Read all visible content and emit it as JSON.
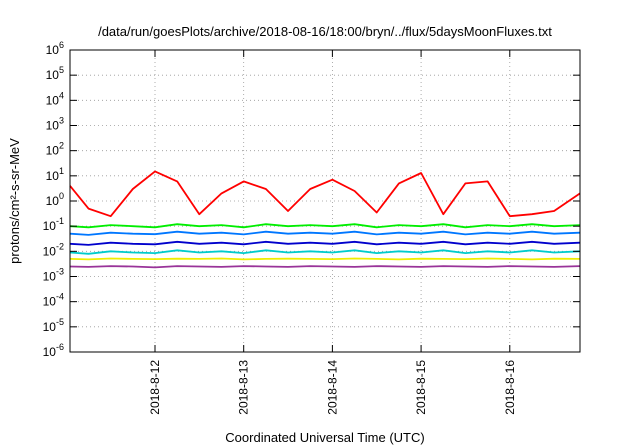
{
  "chart_data": {
    "type": "line",
    "title": "/data/run/goesPlots/archive/2018-08-16/18:00/bryn/../flux/5daysMoonFluxes.txt",
    "xlabel": "Coordinated Universal Time (UTC)",
    "ylabel": "protons/cm²-s-sr-MeV",
    "y_scale": "log",
    "ylim": [
      1e-06,
      1000000.0
    ],
    "xlim": [
      "2018-08-11 01:00",
      "2018-08-16 19:00"
    ],
    "x_ticks": [
      "2018-8-12",
      "2018-8-13",
      "2018-8-14",
      "2018-8-15",
      "2018-8-16"
    ],
    "grid": true,
    "legend": "none",
    "x": [
      "2018-08-11 01:00",
      "2018-08-11 06:00",
      "2018-08-11 12:00",
      "2018-08-11 18:00",
      "2018-08-12 00:00",
      "2018-08-12 06:00",
      "2018-08-12 12:00",
      "2018-08-12 18:00",
      "2018-08-13 00:00",
      "2018-08-13 06:00",
      "2018-08-13 12:00",
      "2018-08-13 18:00",
      "2018-08-14 00:00",
      "2018-08-14 06:00",
      "2018-08-14 12:00",
      "2018-08-14 18:00",
      "2018-08-15 00:00",
      "2018-08-15 06:00",
      "2018-08-15 12:00",
      "2018-08-15 18:00",
      "2018-08-16 00:00",
      "2018-08-16 06:00",
      "2018-08-16 12:00",
      "2018-08-16 19:00"
    ],
    "series": [
      {
        "color": "#ff0000",
        "values": [
          4,
          0.5,
          0.25,
          3,
          15,
          6,
          0.3,
          2,
          6,
          3,
          0.4,
          3,
          7,
          2.5,
          0.35,
          5,
          13,
          0.3,
          5,
          6,
          0.25,
          0.3,
          0.4,
          2
        ]
      },
      {
        "color": "#00ee00",
        "values": [
          0.1,
          0.09,
          0.11,
          0.1,
          0.09,
          0.12,
          0.1,
          0.11,
          0.09,
          0.12,
          0.1,
          0.11,
          0.1,
          0.12,
          0.09,
          0.11,
          0.1,
          0.12,
          0.09,
          0.11,
          0.1,
          0.12,
          0.1,
          0.11
        ]
      },
      {
        "color": "#0077ff",
        "values": [
          0.05,
          0.045,
          0.055,
          0.05,
          0.048,
          0.06,
          0.05,
          0.055,
          0.047,
          0.06,
          0.05,
          0.055,
          0.05,
          0.06,
          0.047,
          0.055,
          0.05,
          0.06,
          0.047,
          0.055,
          0.05,
          0.06,
          0.05,
          0.055
        ]
      },
      {
        "color": "#0000cc",
        "values": [
          0.02,
          0.018,
          0.022,
          0.02,
          0.019,
          0.024,
          0.02,
          0.022,
          0.019,
          0.024,
          0.02,
          0.022,
          0.02,
          0.024,
          0.019,
          0.022,
          0.02,
          0.024,
          0.019,
          0.022,
          0.02,
          0.024,
          0.02,
          0.022
        ]
      },
      {
        "color": "#00cccc",
        "values": [
          0.009,
          0.008,
          0.01,
          0.009,
          0.0085,
          0.011,
          0.009,
          0.01,
          0.0085,
          0.011,
          0.009,
          0.01,
          0.009,
          0.011,
          0.0085,
          0.01,
          0.009,
          0.011,
          0.0085,
          0.01,
          0.009,
          0.011,
          0.009,
          0.01
        ]
      },
      {
        "color": "#eeee00",
        "values": [
          0.005,
          0.0048,
          0.0052,
          0.005,
          0.0049,
          0.0051,
          0.005,
          0.0052,
          0.0048,
          0.005,
          0.0051,
          0.005,
          0.0049,
          0.0052,
          0.005,
          0.0048,
          0.0051,
          0.005,
          0.0049,
          0.0052,
          0.005,
          0.0048,
          0.0051,
          0.005
        ]
      },
      {
        "color": "#993399",
        "values": [
          0.0025,
          0.0024,
          0.0026,
          0.0025,
          0.0023,
          0.0026,
          0.0025,
          0.0024,
          0.0026,
          0.0025,
          0.0024,
          0.0026,
          0.0025,
          0.0024,
          0.0026,
          0.0025,
          0.0024,
          0.0026,
          0.0025,
          0.0024,
          0.0026,
          0.0025,
          0.0024,
          0.0026
        ]
      }
    ]
  }
}
